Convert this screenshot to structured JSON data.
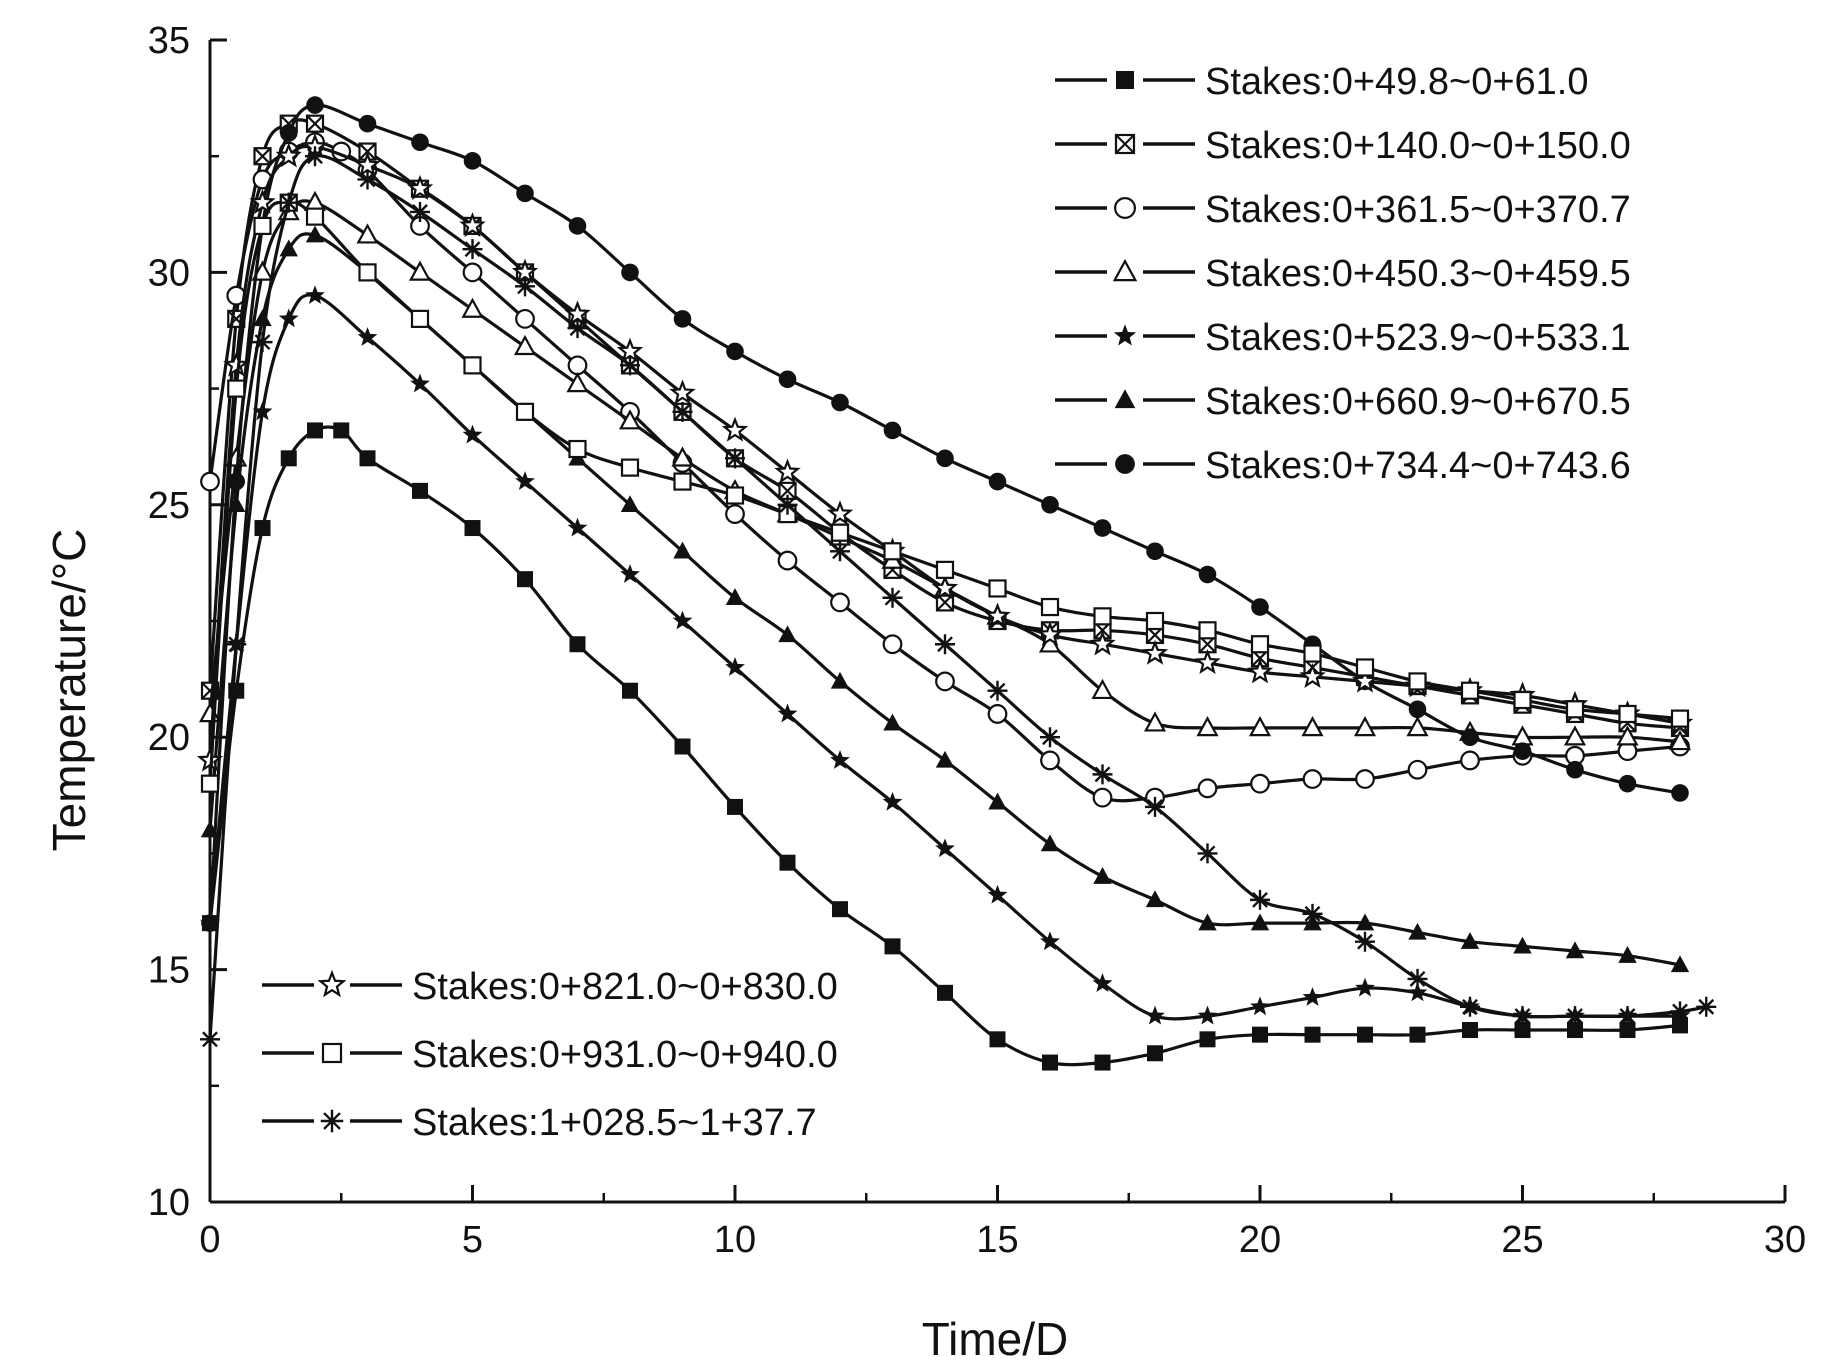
{
  "chart_data": {
    "type": "line",
    "title": "",
    "xlabel": "Time/D",
    "ylabel": "Temperature/°C",
    "xlim": [
      0,
      30
    ],
    "ylim": [
      10,
      35
    ],
    "xticks": [
      0,
      5,
      10,
      15,
      20,
      25,
      30
    ],
    "yticks": [
      10,
      15,
      20,
      25,
      30,
      35
    ],
    "grid": false,
    "legend_groups": [
      "top-right",
      "bottom-left"
    ],
    "series": [
      {
        "name": "Stakes:0+49.8~0+61.0",
        "marker": "filled-square",
        "legend_group": 0,
        "x": [
          0,
          0.5,
          1,
          1.5,
          2,
          2.5,
          3,
          4,
          5,
          6,
          7,
          8,
          9,
          10,
          11,
          12,
          13,
          14,
          15,
          16,
          17,
          18,
          19,
          20,
          21,
          22,
          23,
          24,
          25,
          26,
          27,
          28
        ],
        "y": [
          16.0,
          21.0,
          24.5,
          26.0,
          26.6,
          26.6,
          26.0,
          25.3,
          24.5,
          23.4,
          22.0,
          21.0,
          19.8,
          18.5,
          17.3,
          16.3,
          15.5,
          14.5,
          13.5,
          13.0,
          13.0,
          13.2,
          13.5,
          13.6,
          13.6,
          13.6,
          13.6,
          13.7,
          13.7,
          13.7,
          13.7,
          13.8
        ]
      },
      {
        "name": "Stakes:0+140.0~0+150.0",
        "marker": "crossed-square",
        "legend_group": 0,
        "x": [
          0,
          0.5,
          1,
          1.5,
          2,
          3,
          4,
          5,
          6,
          7,
          8,
          9,
          10,
          11,
          12,
          13,
          14,
          15,
          16,
          17,
          18,
          19,
          20,
          21,
          22,
          23,
          24,
          25,
          26,
          27,
          28
        ],
        "y": [
          21.0,
          29.0,
          32.5,
          33.2,
          33.2,
          32.6,
          31.8,
          31.0,
          30.0,
          29.0,
          28.0,
          27.0,
          26.0,
          25.3,
          24.4,
          23.6,
          22.9,
          22.5,
          22.3,
          22.3,
          22.2,
          22.0,
          21.7,
          21.5,
          21.3,
          21.1,
          20.9,
          20.7,
          20.5,
          20.3,
          20.2
        ]
      },
      {
        "name": "Stakes:0+361.5~0+370.7",
        "marker": "open-circle",
        "legend_group": 0,
        "x": [
          0,
          0.5,
          1,
          1.5,
          2,
          2.5,
          3,
          4,
          5,
          6,
          7,
          8,
          9,
          10,
          11,
          12,
          13,
          14,
          15,
          16,
          17,
          18,
          19,
          20,
          21,
          22,
          23,
          24,
          25,
          26,
          27,
          28
        ],
        "y": [
          25.5,
          29.5,
          32.0,
          32.6,
          32.8,
          32.6,
          32.2,
          31.0,
          30.0,
          29.0,
          28.0,
          27.0,
          25.9,
          24.8,
          23.8,
          22.9,
          22.0,
          21.2,
          20.5,
          19.5,
          18.7,
          18.7,
          18.9,
          19.0,
          19.1,
          19.1,
          19.3,
          19.5,
          19.6,
          19.6,
          19.7,
          19.8
        ]
      },
      {
        "name": "Stakes:0+450.3~0+459.5",
        "marker": "open-triangle",
        "legend_group": 0,
        "x": [
          0,
          0.5,
          1,
          1.5,
          2,
          3,
          4,
          5,
          6,
          7,
          8,
          9,
          10,
          11,
          12,
          13,
          14,
          15,
          16,
          17,
          18,
          19,
          20,
          21,
          22,
          23,
          24,
          25,
          26,
          27,
          28
        ],
        "y": [
          20.5,
          26.0,
          30.0,
          31.3,
          31.5,
          30.8,
          30.0,
          29.2,
          28.4,
          27.6,
          26.8,
          26.0,
          25.3,
          24.8,
          24.3,
          23.8,
          23.2,
          22.6,
          22.0,
          21.0,
          20.3,
          20.2,
          20.2,
          20.2,
          20.2,
          20.2,
          20.1,
          20.0,
          20.0,
          20.0,
          19.9
        ]
      },
      {
        "name": "Stakes:0+523.9~0+533.1",
        "marker": "filled-star",
        "legend_group": 0,
        "x": [
          0,
          0.5,
          1,
          1.5,
          2,
          3,
          4,
          5,
          6,
          7,
          8,
          9,
          10,
          11,
          12,
          13,
          14,
          15,
          16,
          17,
          18,
          19,
          20,
          21,
          22,
          23,
          24,
          25,
          26,
          27,
          28
        ],
        "y": [
          16.0,
          22.0,
          27.0,
          29.0,
          29.5,
          28.6,
          27.6,
          26.5,
          25.5,
          24.5,
          23.5,
          22.5,
          21.5,
          20.5,
          19.5,
          18.6,
          17.6,
          16.6,
          15.6,
          14.7,
          14.0,
          14.0,
          14.2,
          14.4,
          14.6,
          14.5,
          14.2,
          14.0,
          14.0,
          14.0,
          14.0
        ]
      },
      {
        "name": "Stakes:0+660.9~0+670.5",
        "marker": "filled-triangle",
        "legend_group": 0,
        "x": [
          0,
          0.5,
          1,
          1.5,
          2,
          3,
          4,
          5,
          6,
          7,
          8,
          9,
          10,
          11,
          12,
          13,
          14,
          15,
          16,
          17,
          18,
          19,
          20,
          21,
          22,
          23,
          24,
          25,
          26,
          27,
          28
        ],
        "y": [
          18.0,
          25.0,
          29.0,
          30.5,
          30.8,
          30.0,
          29.0,
          28.0,
          27.0,
          26.0,
          25.0,
          24.0,
          23.0,
          22.2,
          21.2,
          20.3,
          19.5,
          18.6,
          17.7,
          17.0,
          16.5,
          16.0,
          16.0,
          16.0,
          16.0,
          15.8,
          15.6,
          15.5,
          15.4,
          15.3,
          15.1
        ]
      },
      {
        "name": "Stakes:0+734.4~0+743.6",
        "marker": "filled-circle",
        "legend_group": 0,
        "x": [
          0,
          0.5,
          1,
          1.5,
          2,
          3,
          4,
          5,
          6,
          7,
          8,
          9,
          10,
          11,
          12,
          13,
          14,
          15,
          16,
          17,
          18,
          19,
          20,
          21,
          22,
          23,
          24,
          25,
          26,
          27,
          28
        ],
        "y": [
          16.0,
          25.5,
          31.0,
          33.0,
          33.6,
          33.2,
          32.8,
          32.4,
          31.7,
          31.0,
          30.0,
          29.0,
          28.3,
          27.7,
          27.2,
          26.6,
          26.0,
          25.5,
          25.0,
          24.5,
          24.0,
          23.5,
          22.8,
          22.0,
          21.2,
          20.6,
          20.0,
          19.7,
          19.3,
          19.0,
          18.8
        ]
      },
      {
        "name": "Stakes:0+821.0~0+830.0",
        "marker": "open-star",
        "legend_group": 1,
        "x": [
          0,
          0.5,
          1,
          1.5,
          2,
          3,
          4,
          5,
          6,
          7,
          8,
          9,
          10,
          11,
          12,
          13,
          14,
          15,
          16,
          17,
          18,
          19,
          20,
          21,
          22,
          23,
          24,
          25,
          26,
          27,
          28
        ],
        "y": [
          19.5,
          28.0,
          31.5,
          32.5,
          32.7,
          32.3,
          31.8,
          31.0,
          30.0,
          29.1,
          28.3,
          27.4,
          26.6,
          25.7,
          24.8,
          24.0,
          23.2,
          22.6,
          22.2,
          22.0,
          21.8,
          21.6,
          21.4,
          21.3,
          21.2,
          21.1,
          21.0,
          20.9,
          20.7,
          20.5,
          20.3
        ]
      },
      {
        "name": "Stakes:0+931.0~0+940.0",
        "marker": "open-square",
        "legend_group": 1,
        "x": [
          0,
          0.5,
          1,
          1.5,
          2,
          3,
          4,
          5,
          6,
          7,
          8,
          9,
          10,
          11,
          12,
          13,
          14,
          15,
          16,
          17,
          18,
          19,
          20,
          21,
          22,
          23,
          24,
          25,
          26,
          27,
          28
        ],
        "y": [
          19.0,
          27.5,
          31.0,
          31.5,
          31.2,
          30.0,
          29.0,
          28.0,
          27.0,
          26.2,
          25.8,
          25.5,
          25.2,
          24.8,
          24.4,
          24.0,
          23.6,
          23.2,
          22.8,
          22.6,
          22.5,
          22.3,
          22.0,
          21.8,
          21.5,
          21.2,
          21.0,
          20.8,
          20.6,
          20.5,
          20.4
        ]
      },
      {
        "name": "Stakes:1+028.5~1+37.7",
        "marker": "asterisk",
        "legend_group": 1,
        "x": [
          0,
          0.5,
          1,
          1.5,
          2,
          3,
          4,
          5,
          6,
          7,
          8,
          9,
          10,
          11,
          12,
          13,
          14,
          15,
          16,
          17,
          18,
          19,
          20,
          21,
          22,
          23,
          24,
          25,
          26,
          27,
          28,
          28.5
        ],
        "y": [
          13.5,
          22.0,
          28.5,
          31.5,
          32.5,
          32.0,
          31.3,
          30.5,
          29.7,
          28.8,
          28.0,
          27.0,
          26.0,
          25.0,
          24.0,
          23.0,
          22.0,
          21.0,
          20.0,
          19.2,
          18.5,
          17.5,
          16.5,
          16.2,
          15.6,
          14.8,
          14.2,
          14.0,
          14.0,
          14.0,
          14.1,
          14.2
        ]
      }
    ]
  }
}
